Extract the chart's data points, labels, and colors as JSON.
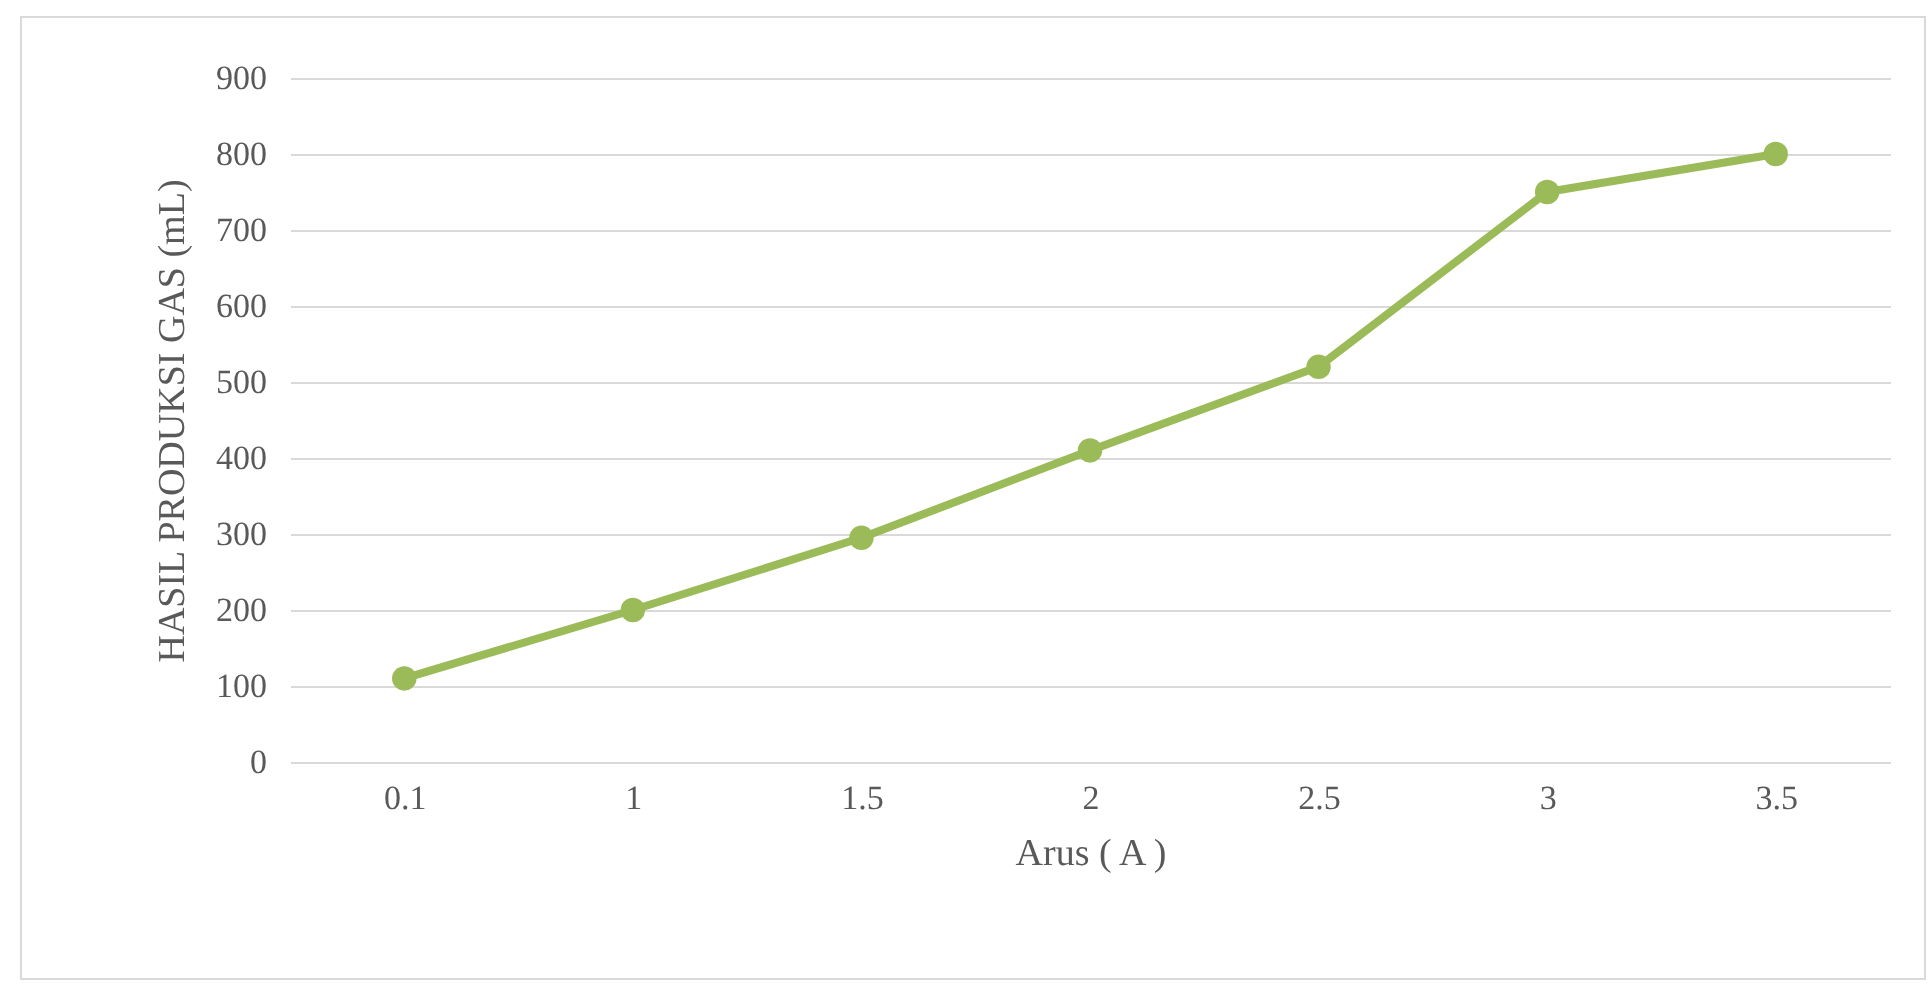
{
  "chart_data": {
    "type": "line",
    "xlabel": "Arus ( A )",
    "ylabel": "HASIL PRODUKSI GAS (mL)",
    "categories": [
      "0.1",
      "1",
      "1.5",
      "2",
      "2.5",
      "3",
      "3.5"
    ],
    "series": [
      {
        "color": "#9bbb59",
        "values": [
          110,
          200,
          295,
          410,
          520,
          750,
          800
        ]
      }
    ],
    "ylim": [
      0,
      900
    ],
    "yticks": [
      0,
      100,
      200,
      300,
      400,
      500,
      600,
      700,
      800,
      900
    ],
    "grid": "y",
    "marker": "circle",
    "line_style": "solid",
    "legend": false
  }
}
